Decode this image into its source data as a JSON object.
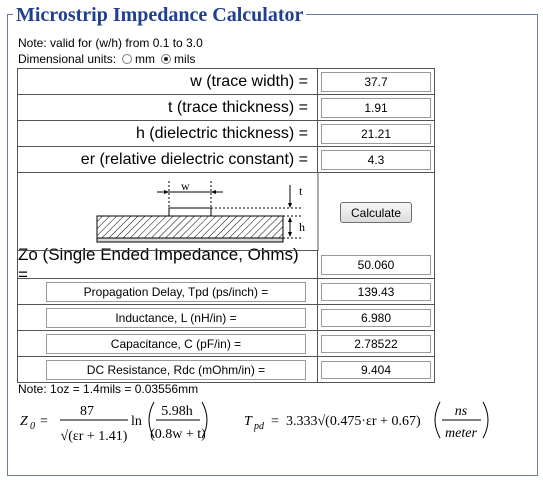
{
  "title": "Microstrip Impedance Calculator",
  "note_valid": "Note: valid for (w/h) from 0.1 to 3.0",
  "units": {
    "label": "Dimensional units:",
    "mm": "mm",
    "mils": "mils",
    "selected": "mils"
  },
  "inputs": [
    {
      "label": "w (trace width) =",
      "value": "37.7"
    },
    {
      "label": "t (trace thickness) =",
      "value": "1.91"
    },
    {
      "label": "h (dielectric thickness) =",
      "value": "21.21"
    },
    {
      "label": "er (relative dielectric constant) =",
      "value": "4.3"
    }
  ],
  "diagram": {
    "w": "w",
    "t": "t",
    "h": "h"
  },
  "calculate_label": "Calculate",
  "zo": {
    "label": "Zo (Single Ended Impedance, Ohms) =",
    "value": "50.060"
  },
  "results": [
    {
      "label": "Propagation Delay, Tpd (ps/inch) =",
      "value": "139.43"
    },
    {
      "label": "Inductance, L (nH/in) =",
      "value": "6.980"
    },
    {
      "label": "Capacitance, C (pF/in) =",
      "value": "2.78522"
    },
    {
      "label": "DC Resistance, Rdc (mOhm/in) =",
      "value": "9.404"
    }
  ],
  "note_oz": "Note: 1oz = 1.4mils = 0.03556mm",
  "formulas": {
    "z0": "Z",
    "z0_sub": "0",
    "eq": "=",
    "z0_num": "87",
    "z0_den": "√(εr + 1.41)",
    "z0_ln": "ln",
    "z0_inner_num": "5.98h",
    "z0_inner_den": "(0.8w + t)",
    "tpd": "T",
    "tpd_sub": "pd",
    "tpd_expr": "3.333√(0.475·εr + 0.67)",
    "tpd_unit_num": "ns",
    "tpd_unit_den": "meter"
  }
}
